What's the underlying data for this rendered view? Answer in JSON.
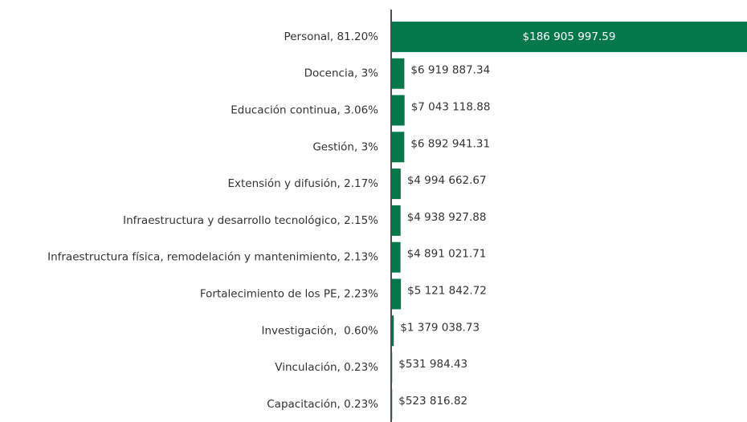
{
  "chart_data": {
    "type": "barh",
    "color": "#04784a",
    "categories": [
      "Personal, 81.20%",
      "Docencia, 3%",
      "Educación continua, 3.06%",
      "Gestión, 3%",
      "Extensión y difusión, 2.17%",
      "Infraestructura y desarrollo tecnológico, 2.15%",
      "Infraestructura física, remodelación y mantenimiento, 2.13%",
      "Fortalecimiento de los PE, 2.23%",
      "Investigación,  0.60%",
      "Vinculación, 0.23%",
      "Capacitación, 0.23%"
    ],
    "values": [
      186905997.59,
      6919887.34,
      7043118.88,
      6892941.31,
      4994662.67,
      4938927.88,
      4891021.71,
      5121842.72,
      1379038.73,
      531984.43,
      523816.82
    ],
    "value_labels": [
      "$186 905 997.59",
      "$6 919 887.34",
      "$7 043 118.88",
      "$6 892 941.31",
      "$4 994 662.67",
      "$4 938 927.88",
      "$4 891 021.71",
      "$5 121 842.72",
      "$1 379 038.73",
      "$531 984.43",
      "$523 816.82"
    ]
  }
}
